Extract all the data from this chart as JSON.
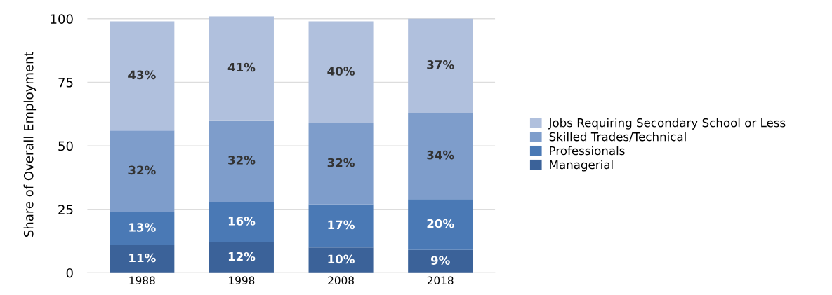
{
  "chart_data": {
    "type": "bar",
    "stacked": true,
    "ylabel": "Share of Overall Employment",
    "categories": [
      "1988",
      "1998",
      "2008",
      "2018"
    ],
    "series": [
      {
        "name": "Managerial",
        "color": "#3b6299",
        "values": [
          11,
          12,
          10,
          9
        ],
        "value_labels": [
          "11%",
          "12%",
          "10%",
          "9%"
        ]
      },
      {
        "name": "Professionals",
        "color": "#4a79b5",
        "values": [
          13,
          16,
          17,
          20
        ],
        "value_labels": [
          "13%",
          "16%",
          "17%",
          "20%"
        ]
      },
      {
        "name": "Skilled Trades/Technical",
        "color": "#7e9dcb",
        "values": [
          32,
          32,
          32,
          34
        ],
        "value_labels": [
          "32%",
          "32%",
          "32%",
          "34%"
        ]
      },
      {
        "name": "Jobs Requiring Secondary School or Less",
        "color": "#b0c0dd",
        "values": [
          43,
          41,
          40,
          37
        ],
        "value_labels": [
          "43%",
          "41%",
          "40%",
          "37%"
        ]
      }
    ],
    "ylim": [
      0,
      101
    ],
    "yticks": [
      0,
      25,
      50,
      75,
      100
    ],
    "grid": "y",
    "legend": "right"
  }
}
